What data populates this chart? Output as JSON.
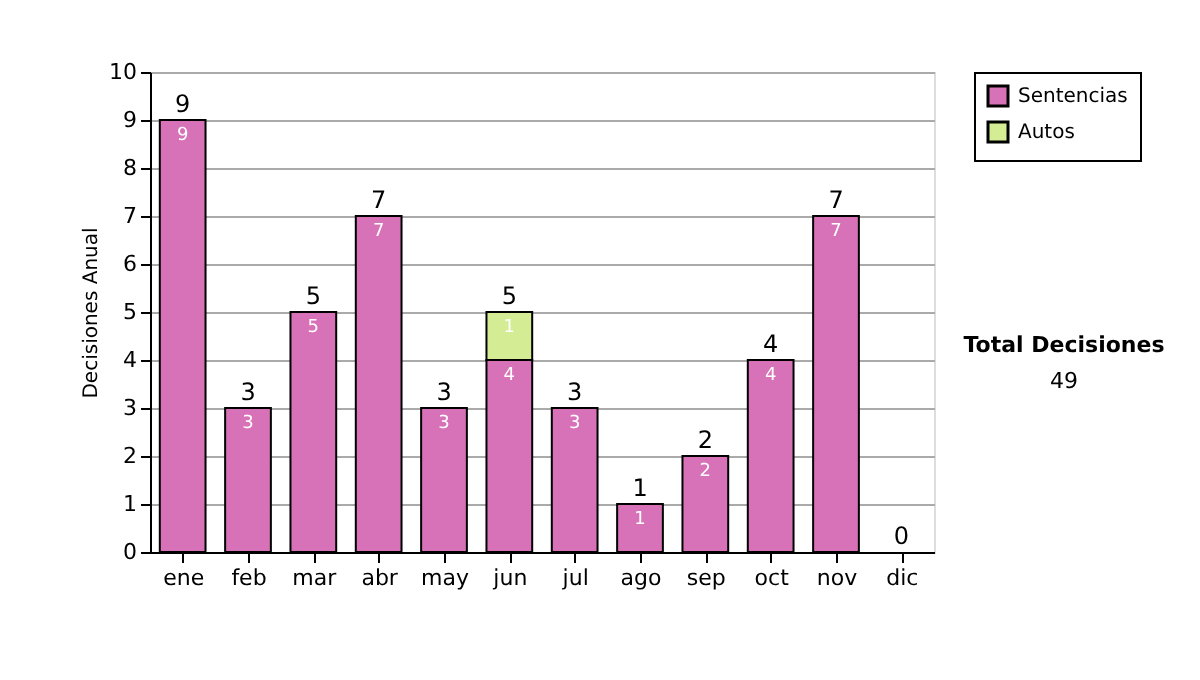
{
  "chart_data": {
    "type": "bar",
    "stacked": true,
    "ylabel": "Decisiones Anual",
    "categories": [
      "ene",
      "feb",
      "mar",
      "abr",
      "may",
      "jun",
      "jul",
      "ago",
      "sep",
      "oct",
      "nov",
      "dic"
    ],
    "series": [
      {
        "name": "Sentencias",
        "color": "#d872b8",
        "values": [
          9,
          3,
          5,
          7,
          3,
          4,
          3,
          1,
          2,
          4,
          7,
          0
        ],
        "value_labels": [
          "9",
          "3",
          "5",
          "7",
          "3",
          "4",
          "3",
          "1",
          "2",
          "4",
          "7",
          null
        ]
      },
      {
        "name": "Autos",
        "color": "#d4ec94",
        "values": [
          0,
          0,
          0,
          0,
          0,
          1,
          0,
          0,
          0,
          0,
          0,
          0
        ],
        "value_labels": [
          null,
          null,
          null,
          null,
          null,
          "1",
          null,
          null,
          null,
          null,
          null,
          null
        ]
      }
    ],
    "totals": [
      "9",
      "3",
      "5",
      "7",
      "3",
      "5",
      "3",
      "1",
      "2",
      "4",
      "7",
      "0"
    ],
    "ylim": [
      0,
      10
    ],
    "yticks": [
      0,
      1,
      2,
      3,
      4,
      5,
      6,
      7,
      8,
      9,
      10
    ],
    "grid": "y",
    "legend": "right",
    "annotations": [
      "Total Decisiones",
      "49"
    ]
  }
}
